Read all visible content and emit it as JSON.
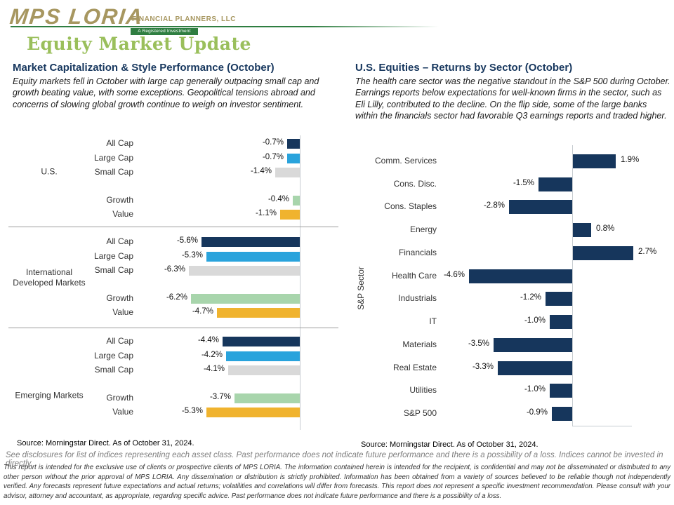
{
  "logo": {
    "brand": "MPS LORIA",
    "brand_suffix": "FINANCIAL PLANNERS, LLC",
    "tagline": "A Registered Investment Advisory Firm"
  },
  "page_title": "Equity Market Update",
  "colors": {
    "navy": "#16365c",
    "light_blue": "#29a3dc",
    "gray": "#d9d9d9",
    "green": "#a8d5ac",
    "orange": "#f0b32e",
    "title_green": "#9abf5b",
    "logo_gold": "#a79760",
    "logo_green": "#2f7e41"
  },
  "left_panel": {
    "heading": "Market Capitalization & Style Performance (October)",
    "commentary": "Equity markets fell in October with large cap generally outpacing small cap and growth beating value, with some exceptions. Geopolitical tensions abroad and concerns of slowing global growth continue to weigh on investor sentiment.",
    "source": "Source: Morningstar Direct.  As of October 31, 2024."
  },
  "right_panel": {
    "heading": "U.S. Equities – Returns by Sector (October)",
    "commentary": "The health care sector was the negative standout in the S&P 500 during October. Earnings reports below expectations for well-known firms in the sector, such as Eli Lilly, contributed to the decline. On the flip side, some of the large banks within the financials sector had favorable Q3 earnings reports and traded higher.",
    "source": "Source: Morningstar Direct.  As of October 31, 2024."
  },
  "chart_data": [
    {
      "type": "bar",
      "orientation": "horizontal",
      "title": "Market Capitalization & Style Performance (October)",
      "unit": "%",
      "value_axis": "zero baseline at right; negative bars extend left",
      "grid": false,
      "groups": [
        {
          "label": "U.S.",
          "rows": [
            {
              "label": "All Cap",
              "value": -0.7,
              "display": "-0.7%",
              "color_key": "navy"
            },
            {
              "label": "Large Cap",
              "value": -0.7,
              "display": "-0.7%",
              "color_key": "light_blue"
            },
            {
              "label": "Small Cap",
              "value": -1.4,
              "display": "-1.4%",
              "color_key": "gray"
            },
            {
              "label": "Growth",
              "value": -0.4,
              "display": "-0.4%",
              "color_key": "green"
            },
            {
              "label": "Value",
              "value": -1.1,
              "display": "-1.1%",
              "color_key": "orange"
            }
          ]
        },
        {
          "label": "International Developed Markets",
          "rows": [
            {
              "label": "All Cap",
              "value": -5.6,
              "display": "-5.6%",
              "color_key": "navy"
            },
            {
              "label": "Large Cap",
              "value": -5.3,
              "display": "-5.3%",
              "color_key": "light_blue"
            },
            {
              "label": "Small Cap",
              "value": -6.3,
              "display": "-6.3%",
              "color_key": "gray"
            },
            {
              "label": "Growth",
              "value": -6.2,
              "display": "-6.2%",
              "color_key": "green"
            },
            {
              "label": "Value",
              "value": -4.7,
              "display": "-4.7%",
              "color_key": "orange"
            }
          ]
        },
        {
          "label": "Emerging Markets",
          "rows": [
            {
              "label": "All Cap",
              "value": -4.4,
              "display": "-4.4%",
              "color_key": "navy"
            },
            {
              "label": "Large Cap",
              "value": -4.2,
              "display": "-4.2%",
              "color_key": "light_blue"
            },
            {
              "label": "Small Cap",
              "value": -4.1,
              "display": "-4.1%",
              "color_key": "gray"
            },
            {
              "label": "Growth",
              "value": -3.7,
              "display": "-3.7%",
              "color_key": "green"
            },
            {
              "label": "Value",
              "value": -5.3,
              "display": "-5.3%",
              "color_key": "orange"
            }
          ]
        }
      ]
    },
    {
      "type": "bar",
      "orientation": "horizontal",
      "title": "U.S. Equities – Returns by Sector (October)",
      "ylabel": "S&P Sector",
      "unit": "%",
      "grid": false,
      "categories": [
        "Comm. Services",
        "Cons. Disc.",
        "Cons. Staples",
        "Energy",
        "Financials",
        "Health Care",
        "Industrials",
        "IT",
        "Materials",
        "Real Estate",
        "Utilities",
        "S&P 500"
      ],
      "values": [
        1.9,
        -1.5,
        -2.8,
        0.8,
        2.7,
        -4.6,
        -1.2,
        -1.0,
        -3.5,
        -3.3,
        -1.0,
        -0.9
      ],
      "displays": [
        "1.9%",
        "-1.5%",
        "-2.8%",
        "0.8%",
        "2.7%",
        "-4.6%",
        "-1.2%",
        "-1.0%",
        "-3.5%",
        "-3.3%",
        "-1.0%",
        "-0.9%"
      ],
      "bar_color_key": "navy"
    }
  ],
  "footnote": "See disclosures for list of indices representing each asset class. Past performance does not indicate future performance and there is a possibility of a loss. Indices cannot be invested in directly.",
  "disclaimer": "This report is intended for the exclusive use of clients or prospective clients of MPS LORIA. The information contained herein is intended for the recipient, is confidential and may not be disseminated or distributed to any other person without the prior approval of MPS LORIA. Any dissemination or distribution is strictly prohibited. Information has been obtained from a variety of sources believed to be reliable though not independently verified. Any forecasts represent future expectations and actual returns; volatilities and correlations will differ from forecasts. This report does not represent a specific investment recommendation. Please consult with your advisor, attorney and accountant, as appropriate, regarding specific advice. Past performance does not indicate future performance and there is a possibility of a loss."
}
